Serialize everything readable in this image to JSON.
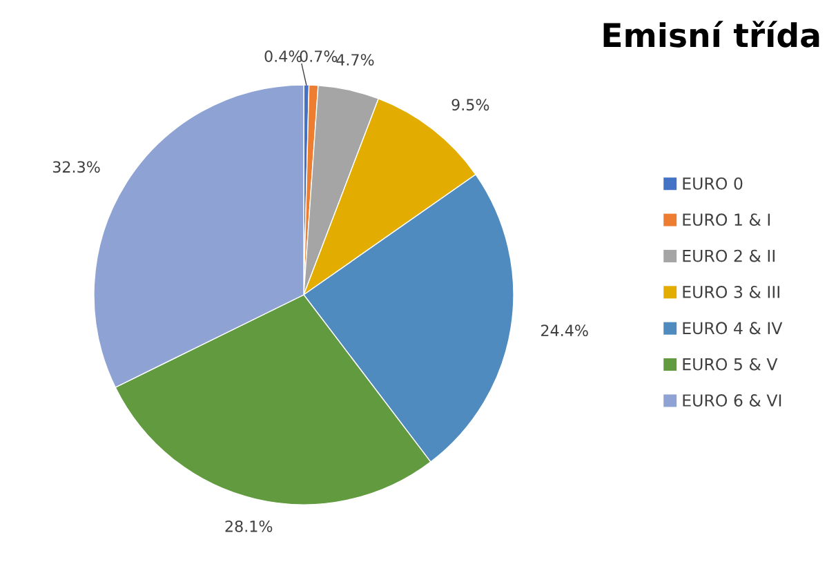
{
  "chart_data": {
    "type": "pie",
    "title": "Emisní třída",
    "categories": [
      "EURO 0",
      "EURO 1 & I",
      "EURO 2 & II",
      "EURO 3 & III",
      "EURO 4 & IV",
      "EURO 5 & V",
      "EURO 6 & VI"
    ],
    "values": [
      0.4,
      0.7,
      4.7,
      9.5,
      24.4,
      28.1,
      32.3
    ],
    "value_labels": [
      "0.4%",
      "0.7%",
      "4.7%",
      "9.5%",
      "24.4%",
      "28.1%",
      "32.3%"
    ],
    "colors": [
      "#4472c4",
      "#ed7d31",
      "#a5a5a5",
      "#e3ac00",
      "#4f8bbf",
      "#619a3f",
      "#8ea3d4"
    ],
    "legend": "right"
  }
}
